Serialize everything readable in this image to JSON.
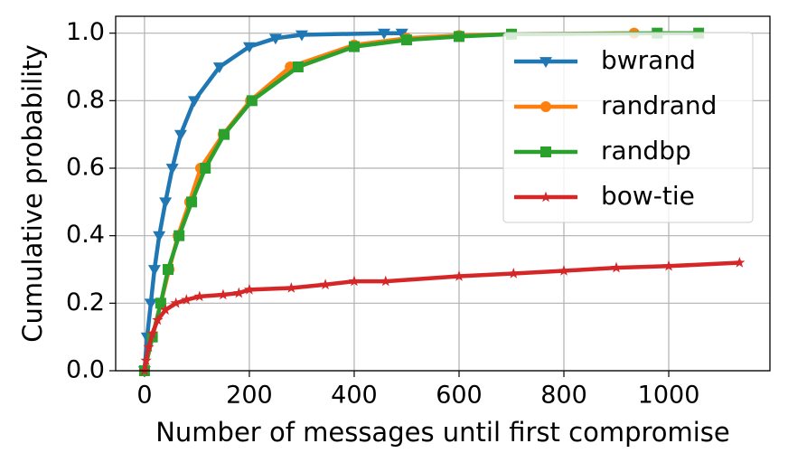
{
  "chart_data": {
    "type": "line",
    "xlabel": "Number of messages until first compromise",
    "ylabel": "Cumulative probability",
    "xlim": [
      -55,
      1193
    ],
    "ylim": [
      0,
      1.05
    ],
    "xticks": [
      0,
      200,
      400,
      600,
      800,
      1000
    ],
    "yticks": [
      {
        "value": 0,
        "label": "0.0"
      },
      0.2,
      0.4,
      0.6,
      0.8,
      {
        "value": 1,
        "label": "1.0"
      }
    ],
    "grid": true,
    "legend": "upper right",
    "series": [
      {
        "name": "bwrand",
        "color": "#1f77b4",
        "marker": "v",
        "x": [
          0,
          5,
          12,
          19,
          28,
          40,
          53,
          69,
          95,
          143,
          200,
          250,
          300,
          457,
          491
        ],
        "values": [
          0,
          0.1,
          0.2,
          0.3,
          0.4,
          0.5,
          0.6,
          0.7,
          0.8,
          0.9,
          0.96,
          0.985,
          0.995,
          1.0,
          1.0
        ]
      },
      {
        "name": "randrand",
        "color": "#ff7f0e",
        "marker": "o",
        "x": [
          0,
          15,
          31,
          47,
          64,
          86,
          107,
          150,
          202,
          278,
          400,
          500,
          600,
          700,
          934
        ],
        "values": [
          0,
          0.1,
          0.2,
          0.3,
          0.4,
          0.5,
          0.6,
          0.7,
          0.8,
          0.9,
          0.965,
          0.985,
          0.993,
          0.997,
          1.0
        ]
      },
      {
        "name": "randbp",
        "color": "#2ca02c",
        "marker": "s",
        "x": [
          0,
          15,
          31,
          45,
          66,
          90,
          116,
          152,
          205,
          293,
          400,
          500,
          600,
          700,
          978,
          1057
        ],
        "values": [
          0,
          0.1,
          0.2,
          0.3,
          0.4,
          0.5,
          0.6,
          0.7,
          0.8,
          0.9,
          0.96,
          0.98,
          0.99,
          0.997,
          1.0,
          1.0
        ]
      },
      {
        "name": "bow-tie",
        "color": "#d62728",
        "marker": "*",
        "x": [
          0,
          3,
          8,
          15,
          25,
          40,
          60,
          80,
          105,
          150,
          180,
          200,
          280,
          345,
          400,
          460,
          600,
          704,
          800,
          900,
          1000,
          1135
        ],
        "values": [
          0,
          0.03,
          0.07,
          0.11,
          0.15,
          0.18,
          0.2,
          0.21,
          0.22,
          0.225,
          0.23,
          0.24,
          0.245,
          0.255,
          0.265,
          0.265,
          0.28,
          0.288,
          0.296,
          0.305,
          0.31,
          0.32
        ]
      }
    ]
  }
}
